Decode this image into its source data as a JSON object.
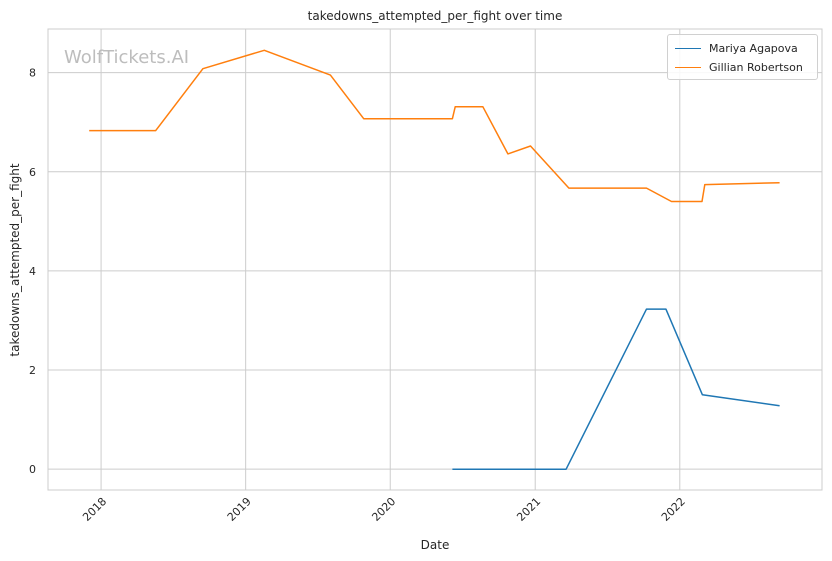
{
  "chart_data": {
    "type": "line",
    "title": "takedowns_attempted_per_fight over time",
    "xlabel": "Date",
    "ylabel": "takedowns_attempted_per_fight",
    "watermark": "WolfTickets.AI",
    "xlim": [
      "2017-08-20",
      "2022-12-26"
    ],
    "ylim": [
      -0.42,
      8.88
    ],
    "x_ticks": [
      "2018-01-01",
      "2019-01-01",
      "2020-01-01",
      "2021-01-01",
      "2022-01-01"
    ],
    "x_tick_labels": [
      "2018",
      "2019",
      "2020",
      "2021",
      "2022"
    ],
    "y_ticks": [
      0,
      2,
      4,
      6,
      8
    ],
    "y_tick_labels": [
      "0",
      "2",
      "4",
      "6",
      "8"
    ],
    "grid": true,
    "legend_position": "top-right",
    "series": [
      {
        "name": "Mariya Agapova",
        "color": "#1f77b4",
        "points": [
          [
            "2020-06-06",
            0.0
          ],
          [
            "2021-03-20",
            0.0
          ],
          [
            "2021-10-09",
            3.23
          ],
          [
            "2021-11-27",
            3.23
          ],
          [
            "2022-02-27",
            1.5
          ],
          [
            "2022-09-10",
            1.28
          ]
        ]
      },
      {
        "name": "Gillian Robertson",
        "color": "#ff7f0e",
        "points": [
          [
            "2017-12-02",
            6.83
          ],
          [
            "2018-05-19",
            6.83
          ],
          [
            "2018-09-15",
            8.08
          ],
          [
            "2019-02-17",
            8.45
          ],
          [
            "2019-08-03",
            7.95
          ],
          [
            "2019-10-26",
            7.07
          ],
          [
            "2020-06-06",
            7.07
          ],
          [
            "2020-06-13",
            7.31
          ],
          [
            "2020-08-22",
            7.31
          ],
          [
            "2020-10-24",
            6.36
          ],
          [
            "2020-12-20",
            6.52
          ],
          [
            "2021-03-27",
            5.67
          ],
          [
            "2021-10-09",
            5.67
          ],
          [
            "2021-12-11",
            5.4
          ],
          [
            "2022-02-26",
            5.4
          ],
          [
            "2022-03-05",
            5.74
          ],
          [
            "2022-09-10",
            5.78
          ]
        ]
      }
    ]
  }
}
